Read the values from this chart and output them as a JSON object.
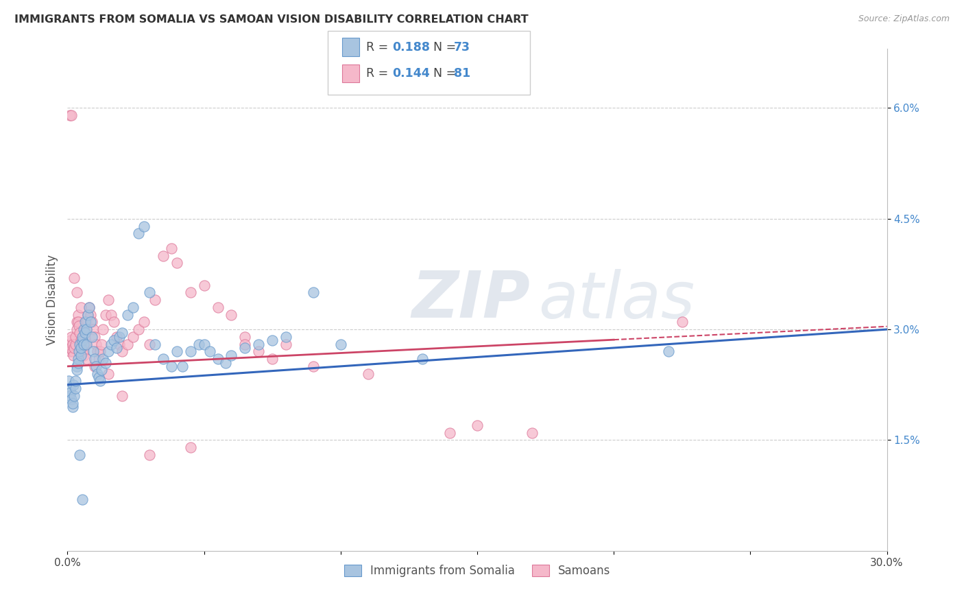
{
  "title": "IMMIGRANTS FROM SOMALIA VS SAMOAN VISION DISABILITY CORRELATION CHART",
  "source": "Source: ZipAtlas.com",
  "ylabel": "Vision Disability",
  "x_min": 0.0,
  "x_max": 30.0,
  "y_min": 0.0,
  "y_max": 6.8,
  "yticks": [
    1.5,
    3.0,
    4.5,
    6.0
  ],
  "ytick_labels": [
    "1.5%",
    "3.0%",
    "4.5%",
    "6.0%"
  ],
  "xticks": [
    0.0,
    5.0,
    10.0,
    15.0,
    20.0,
    25.0,
    30.0
  ],
  "xtick_labels": [
    "0.0%",
    "",
    "",
    "",
    "",
    "",
    "30.0%"
  ],
  "blue_R": 0.188,
  "blue_N": 73,
  "pink_R": 0.144,
  "pink_N": 81,
  "blue_color": "#a8c4e0",
  "pink_color": "#f5b8ca",
  "blue_edge_color": "#6699cc",
  "pink_edge_color": "#dd7799",
  "blue_line_color": "#3366bb",
  "pink_line_color": "#cc4466",
  "legend_label_blue": "Immigrants from Somalia",
  "legend_label_pink": "Samoans",
  "title_fontsize": 11.5,
  "watermark_zip": "ZIP",
  "watermark_atlas": "atlas",
  "background_color": "#ffffff",
  "blue_intercept": 2.25,
  "blue_slope": 0.025,
  "pink_intercept": 2.5,
  "pink_slope": 0.018,
  "blue_x": [
    0.05,
    0.08,
    0.1,
    0.12,
    0.15,
    0.18,
    0.2,
    0.22,
    0.25,
    0.28,
    0.3,
    0.33,
    0.35,
    0.38,
    0.4,
    0.42,
    0.45,
    0.48,
    0.5,
    0.53,
    0.55,
    0.58,
    0.6,
    0.63,
    0.65,
    0.68,
    0.7,
    0.75,
    0.8,
    0.85,
    0.9,
    0.95,
    1.0,
    1.05,
    1.1,
    1.15,
    1.2,
    1.25,
    1.3,
    1.4,
    1.5,
    1.6,
    1.7,
    1.8,
    1.9,
    2.0,
    2.2,
    2.4,
    2.6,
    2.8,
    3.0,
    3.2,
    3.5,
    3.8,
    4.0,
    4.2,
    4.5,
    4.8,
    5.0,
    5.2,
    5.5,
    5.8,
    6.0,
    6.5,
    7.0,
    7.5,
    8.0,
    9.0,
    10.0,
    13.0,
    22.0,
    0.45,
    0.55
  ],
  "blue_y": [
    2.3,
    2.2,
    2.1,
    2.15,
    2.05,
    1.95,
    2.0,
    2.25,
    2.1,
    2.2,
    2.3,
    2.5,
    2.45,
    2.6,
    2.55,
    2.7,
    2.8,
    2.65,
    2.75,
    2.85,
    2.9,
    2.8,
    3.0,
    2.95,
    3.1,
    3.0,
    2.8,
    3.2,
    3.3,
    3.1,
    2.9,
    2.7,
    2.6,
    2.5,
    2.4,
    2.35,
    2.3,
    2.45,
    2.6,
    2.55,
    2.7,
    2.8,
    2.85,
    2.75,
    2.9,
    2.95,
    3.2,
    3.3,
    4.3,
    4.4,
    3.5,
    2.8,
    2.6,
    2.5,
    2.7,
    2.5,
    2.7,
    2.8,
    2.8,
    2.7,
    2.6,
    2.55,
    2.65,
    2.75,
    2.8,
    2.85,
    2.9,
    3.5,
    2.8,
    2.6,
    2.7,
    1.3,
    0.7
  ],
  "pink_x": [
    0.05,
    0.08,
    0.1,
    0.12,
    0.15,
    0.18,
    0.2,
    0.22,
    0.25,
    0.28,
    0.3,
    0.33,
    0.35,
    0.38,
    0.4,
    0.42,
    0.45,
    0.48,
    0.5,
    0.53,
    0.55,
    0.58,
    0.6,
    0.63,
    0.65,
    0.68,
    0.7,
    0.75,
    0.8,
    0.85,
    0.9,
    0.95,
    1.0,
    1.05,
    1.1,
    1.15,
    1.2,
    1.25,
    1.3,
    1.4,
    1.5,
    1.6,
    1.7,
    1.8,
    1.9,
    2.0,
    2.2,
    2.4,
    2.6,
    2.8,
    3.0,
    3.2,
    3.5,
    3.8,
    4.0,
    4.5,
    5.0,
    5.5,
    6.0,
    6.5,
    7.0,
    7.5,
    8.0,
    9.0,
    11.0,
    14.0,
    15.0,
    17.0,
    22.5,
    0.08,
    0.15,
    0.25,
    0.35,
    0.5,
    0.7,
    1.0,
    1.5,
    2.0,
    3.0,
    4.5,
    6.5
  ],
  "pink_y": [
    2.8,
    2.7,
    2.75,
    2.85,
    2.9,
    2.8,
    2.7,
    2.65,
    2.75,
    2.8,
    2.9,
    3.0,
    3.1,
    3.2,
    3.1,
    3.05,
    2.95,
    2.85,
    2.8,
    2.75,
    2.7,
    2.65,
    2.7,
    2.8,
    2.9,
    3.0,
    3.1,
    3.2,
    3.3,
    3.2,
    3.1,
    3.0,
    2.9,
    2.8,
    2.7,
    2.6,
    2.7,
    2.8,
    3.0,
    3.2,
    3.4,
    3.2,
    3.1,
    2.9,
    2.8,
    2.7,
    2.8,
    2.9,
    3.0,
    3.1,
    2.8,
    3.4,
    4.0,
    4.1,
    3.9,
    3.5,
    3.6,
    3.3,
    3.2,
    2.9,
    2.7,
    2.6,
    2.8,
    2.5,
    2.4,
    1.6,
    1.7,
    1.6,
    3.1,
    5.9,
    5.9,
    3.7,
    3.5,
    3.3,
    2.6,
    2.5,
    2.4,
    2.1,
    1.3,
    1.4,
    2.8
  ]
}
